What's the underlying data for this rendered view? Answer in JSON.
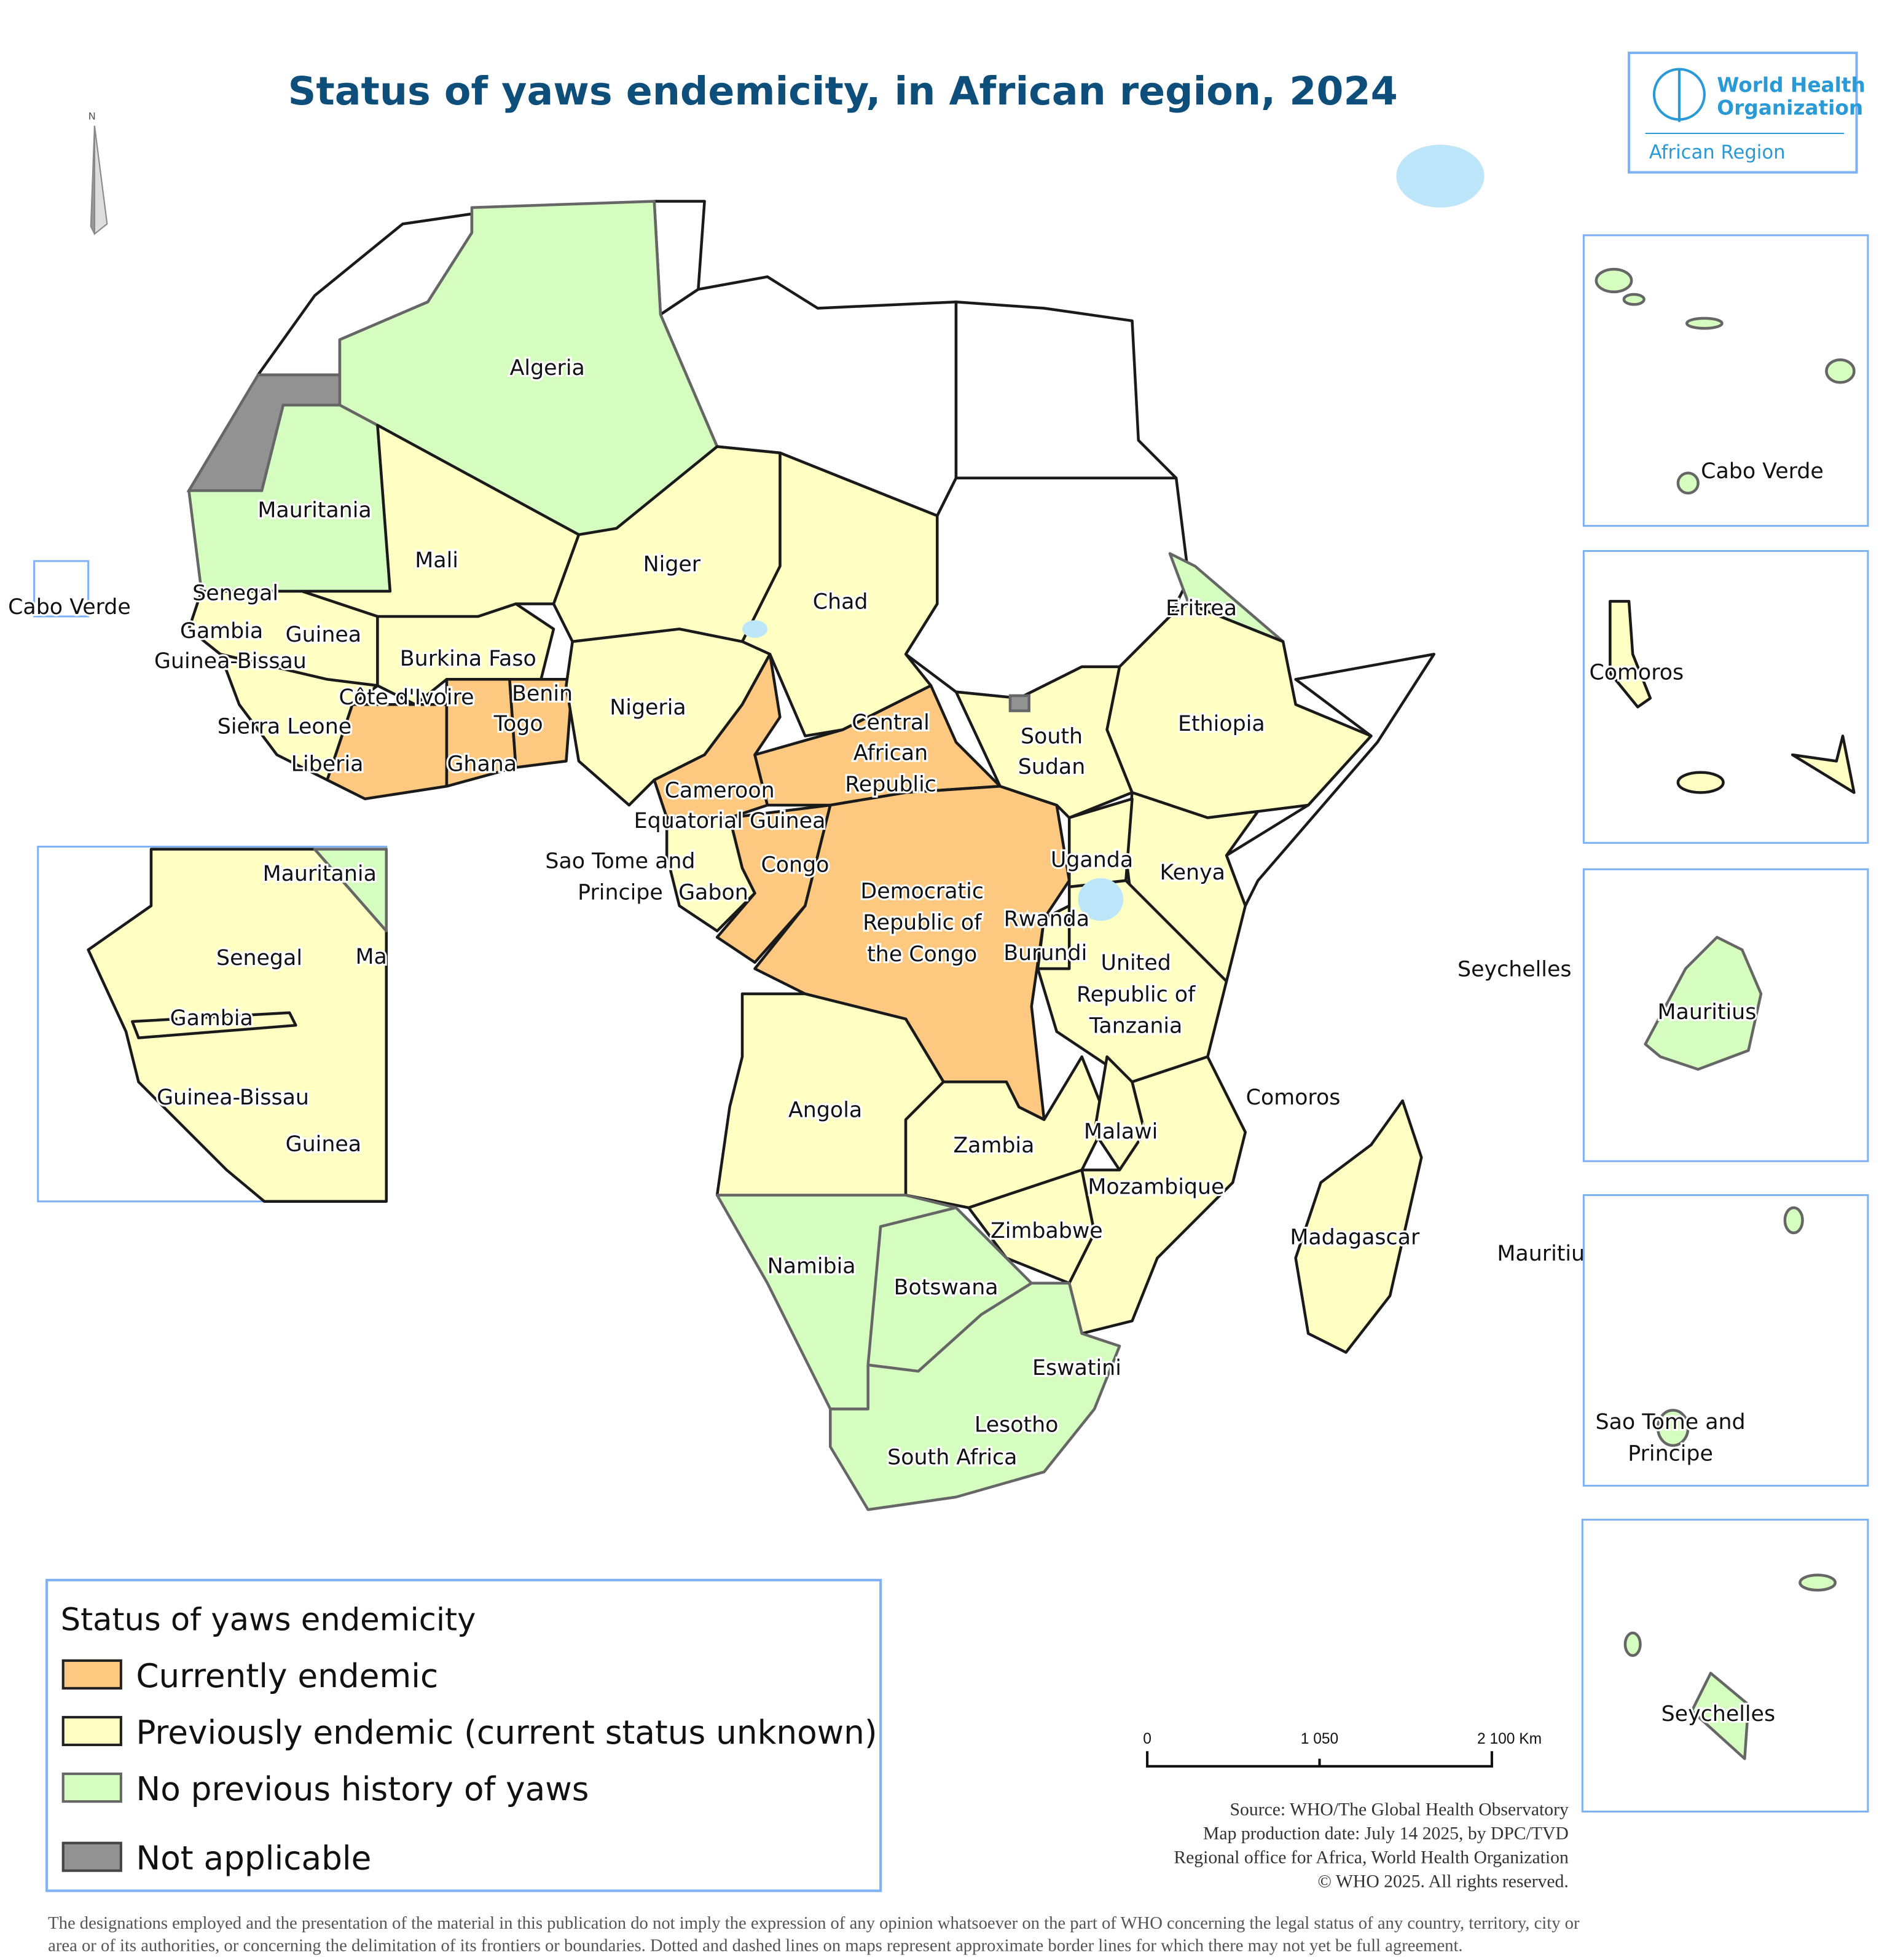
{
  "title": "Status of yaws endemicity, in African region, 2024",
  "logo": {
    "line1": "World Health",
    "line2": "Organization",
    "region": "African Region",
    "color": "#2a9ad6"
  },
  "north_arrow": {
    "label": "N"
  },
  "legend": {
    "title": "Status of yaws endemicity",
    "items": [
      {
        "label": "Currently endemic",
        "color": "#fdc981"
      },
      {
        "label": "Previously endemic (current status unknown)",
        "color": "#ffffc4"
      },
      {
        "label": "No previous history of yaws",
        "color": "#d5fdc0"
      },
      {
        "label": "Not applicable",
        "color": "#929292"
      }
    ]
  },
  "scale_bar": {
    "ticks": [
      "0",
      "1 050",
      "2 100 Km"
    ]
  },
  "source": [
    "Source: WHO/The Global Health Observatory",
    "Map production date: July 14 2025,  by DPC/TVD",
    "Regional office for Africa, World Health Organization",
    "© WHO 2025. All rights reserved."
  ],
  "disclaimer": [
    "The designations employed and the presentation of the material in this publication do not imply the expression of any opinion whatsoever on the part of WHO concerning the legal status of any country, territory, city or",
    "area or of its authorities, or concerning the delimitation of its frontiers or boundaries. Dotted and dashed lines on maps represent approximate border lines for which there may not yet be full agreement."
  ],
  "map": {
    "labels": {
      "algeria": "Algeria",
      "mauritania": "Mauritania",
      "mali": "Mali",
      "niger": "Niger",
      "chad": "Chad",
      "senegal": "Senegal",
      "cabo_verde": "Cabo Verde",
      "gambia": "Gambia",
      "guinea": "Guinea",
      "guinea_bissau": "Guinea-Bissau",
      "burkina_faso": "Burkina Faso",
      "benin": "Benin",
      "cote_divoire": "Côte d'Ivoire",
      "nigeria": "Nigeria",
      "togo": "Togo",
      "sierra_leone": "Sierra Leone",
      "liberia": "Liberia",
      "ghana": "Ghana",
      "car": [
        "Central",
        "African",
        "Republic"
      ],
      "cameroon": "Cameroon",
      "equatorial_guinea": "Equatorial Guinea",
      "sao_tome": [
        "Sao Tome and",
        "Principe"
      ],
      "congo": "Congo",
      "gabon": "Gabon",
      "drc": [
        "Democratic",
        "Republic of",
        "the Congo"
      ],
      "uganda": "Uganda",
      "kenya": "Kenya",
      "rwanda": "Rwanda",
      "burundi": "Burundi",
      "tanzania": [
        "United",
        "Republic of",
        "Tanzania"
      ],
      "eritrea": "Eritrea",
      "ethiopia": "Ethiopia",
      "south_sudan": [
        "South",
        "Sudan"
      ],
      "seychelles": "Seychelles",
      "comoros": "Comoros",
      "angola": "Angola",
      "zambia": "Zambia",
      "malawi": "Malawi",
      "mozambique": "Mozambique",
      "zimbabwe": "Zimbabwe",
      "madagascar": "Madagascar",
      "mauritius": "Mauritiu",
      "namibia": "Namibia",
      "botswana": "Botswana",
      "eswatini": "Eswatini",
      "lesotho": "Lesotho",
      "south_africa": "South Africa"
    },
    "west_africa_inset": {
      "mauritania": "Mauritania",
      "mali_partial": "Ma",
      "senegal": "Senegal",
      "gambia": "Gambia",
      "guinea_bissau": "Guinea-Bissau",
      "guinea": "Guinea"
    },
    "island_insets": {
      "cabo_verde": "Cabo Verde",
      "comoros": "Comoros",
      "mauritius": "Mauritius",
      "sao_tome": [
        "Sao Tome and",
        "Principe"
      ],
      "seychelles": "Seychelles"
    }
  }
}
